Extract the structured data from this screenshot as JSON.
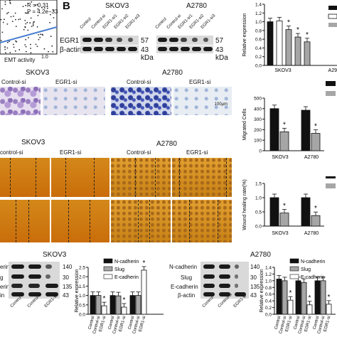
{
  "panel_b_label": "B",
  "scatter": {
    "r_text": "R = 0.31",
    "p_text": "P = 4.2e−33",
    "xlabel": "EMT activity",
    "xtick": "1.0"
  },
  "wb_top": {
    "skov3": "SKOV3",
    "a2780": "A2780",
    "lanes_skov3": [
      "Control",
      "Control-si",
      "EGR1-si1",
      "EGR1-si2",
      "EGR1-si3"
    ],
    "lanes_a2780": [
      "Control",
      "Control-si",
      "EGR1-si1",
      "EGR1-si2",
      "EGR1-si3"
    ],
    "rows": [
      "EGR1",
      "β-actin"
    ],
    "kda": [
      "57",
      "43"
    ],
    "kda_unit": "kDa"
  },
  "migration": {
    "skov3": "SKOV3",
    "a2780": "A2780",
    "labels": [
      "Control-si",
      "EGR1-si",
      "Control-si",
      "EGR1-si"
    ],
    "scale": "100μm"
  },
  "wound": {
    "skov3": "SKOV3",
    "a2780": "A2780",
    "labels": [
      "control-si",
      "EGR1-si",
      "Control-si",
      "EGR1-si"
    ]
  },
  "bottom": {
    "skov3": "SKOV3",
    "a2780": "A2780",
    "rows_left": [
      "erin",
      "g",
      "erin",
      "in"
    ],
    "rows_right": [
      "N-cadherin",
      "Slug",
      "E-cadherin",
      "β-actin"
    ],
    "kda": [
      "140",
      "30",
      "135",
      "43"
    ],
    "lanes_left": [
      "Control",
      "Control-si",
      "EGR1-si"
    ],
    "lanes_right": [
      "Control",
      "Control-si",
      "EGR1-si"
    ]
  },
  "colors": {
    "black_bar": "#111111",
    "gray_bar": "#a6a6a6",
    "white_bar": "#ffffff"
  },
  "chart_data": [
    {
      "type": "bar",
      "id": "relexp_top",
      "ylabel": "Relative expression",
      "ylim": [
        0,
        1.4
      ],
      "yticks": [
        "0.0",
        "0.2",
        "0.4",
        "0.6",
        "0.8",
        "1.0",
        "1.2",
        "1.4"
      ],
      "groups": [
        "SKOV3",
        "A29"
      ],
      "series": [
        {
          "values": [
            1.0,
            1.02,
            0.82,
            0.65,
            0.54
          ]
        }
      ],
      "stars": [
        false,
        false,
        true,
        true,
        true
      ]
    },
    {
      "type": "bar",
      "id": "migrated",
      "ylabel": "Migrated Cells",
      "ylim": [
        0,
        500
      ],
      "yticks": [
        "0",
        "100",
        "200",
        "300",
        "400",
        "500"
      ],
      "categories": [
        "SKOV3",
        "A2780"
      ],
      "series": [
        {
          "values": [
            400,
            385
          ]
        },
        {
          "values": [
            180,
            165
          ]
        }
      ],
      "stars": [
        false,
        true,
        false,
        true
      ]
    },
    {
      "type": "bar",
      "id": "wound_rate",
      "ylabel": "Wound healing rate(%)",
      "ylim": [
        0,
        1.5
      ],
      "yticks": [
        "0.0",
        "0.5",
        "1.0",
        "1.5"
      ],
      "categories": [
        "SKOV3",
        "A2780"
      ],
      "series": [
        {
          "values": [
            1.0,
            1.0
          ]
        },
        {
          "values": [
            0.46,
            0.37
          ]
        }
      ],
      "stars": [
        false,
        true,
        false,
        true
      ]
    },
    {
      "type": "bar",
      "id": "emt_skov3",
      "ylabel": "Relative expression",
      "ylim": [
        0,
        2.5
      ],
      "yticks": [
        "0.0",
        "0.5",
        "1.0",
        "1.5",
        "2.0",
        "2.5"
      ],
      "legend": [
        "N-cadherin",
        "Slug",
        "E-cadherin"
      ],
      "lanes": [
        "Control",
        "Control-si",
        "EGR1-si"
      ],
      "values": [
        [
          1.0,
          1.0,
          0.45
        ],
        [
          1.0,
          0.98,
          0.38
        ],
        [
          1.0,
          1.0,
          2.35
        ]
      ],
      "stars": [
        [
          false,
          false,
          true
        ],
        [
          false,
          false,
          true
        ],
        [
          false,
          false,
          true
        ]
      ]
    },
    {
      "type": "bar",
      "id": "emt_a2780",
      "ylabel": "Relative expression",
      "ylim": [
        0,
        1.4
      ],
      "yticks": [
        "0.0",
        "0.2",
        "0.4",
        "0.6",
        "0.8",
        "1.0",
        "1.2",
        "1.4"
      ],
      "legend": [
        "N-cadherin",
        "Slug",
        "E-cadherin"
      ],
      "lanes": [
        "Control",
        "Control-si",
        "EGR1-si"
      ],
      "values": [
        [
          1.05,
          1.0,
          0.42
        ],
        [
          1.0,
          0.95,
          0.28
        ],
        [
          1.0,
          1.0,
          0.3
        ]
      ],
      "stars": [
        [
          false,
          false,
          true
        ],
        [
          false,
          false,
          true
        ],
        [
          false,
          false,
          true
        ]
      ]
    }
  ]
}
